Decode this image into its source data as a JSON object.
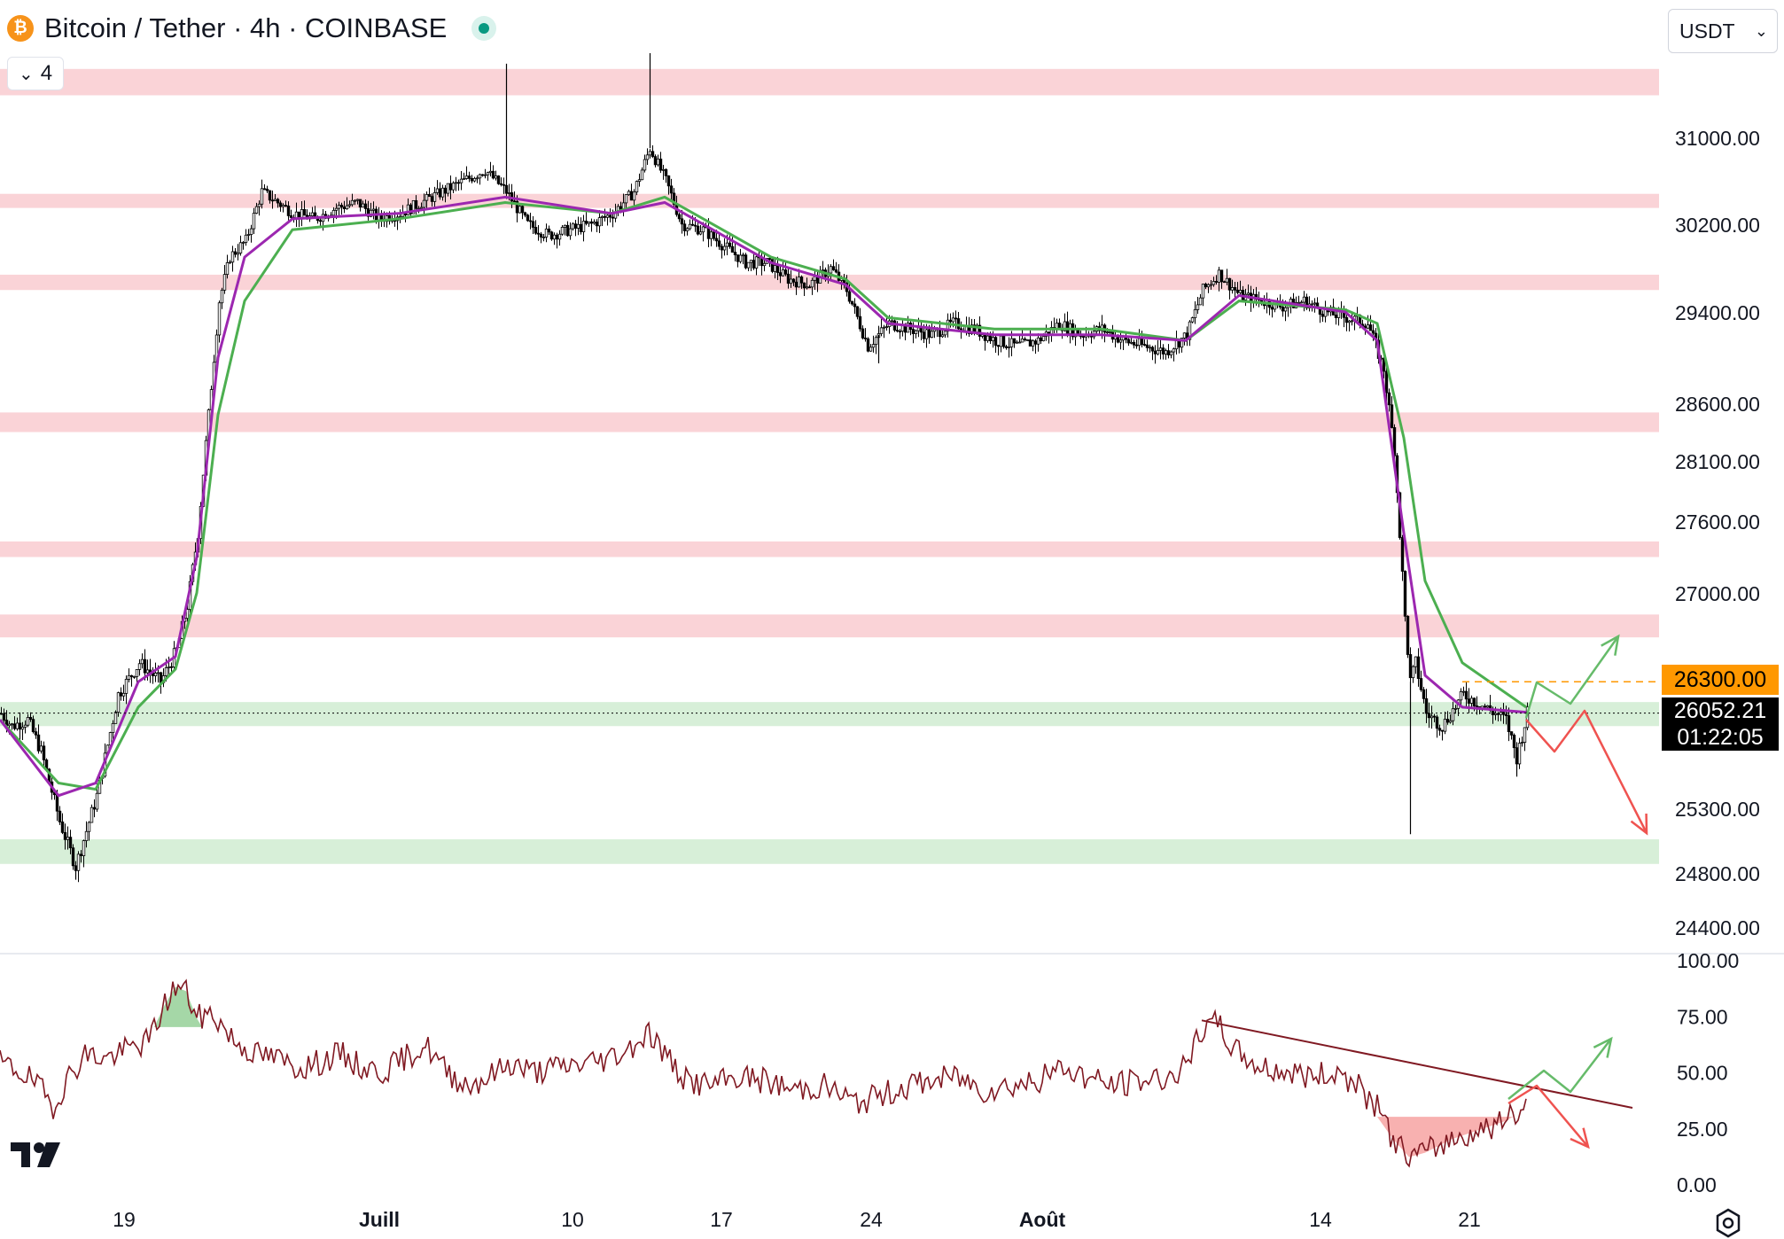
{
  "header": {
    "title": "Bitcoin / Tether · 4h · COINBASE",
    "collapse_count": "4",
    "currency": "USDT"
  },
  "badges": {
    "target_price": "26300.00",
    "last_price": "26052.21",
    "countdown": "01:22:05"
  },
  "colors": {
    "resistance_zone": "#fad3d7",
    "support_zone": "#d7efd8",
    "ema_fast": "#9c27b0",
    "ema_slow": "#4caf50",
    "rsi_line": "#801922",
    "trend_line": "#801922",
    "bull_arrow": "#66bb6a",
    "bear_arrow": "#ef5350",
    "target_line": "#ff9800"
  },
  "icons": [
    "bitcoin-icon",
    "tether-icon",
    "chevron-down-icon",
    "tradingview-logo-icon",
    "settings-icon"
  ],
  "chart_data": [
    {
      "type": "candlestick",
      "title": "Bitcoin / Tether · 4h · COINBASE",
      "ylim": [
        24300,
        32100
      ],
      "y_ticks": [
        31000,
        30200,
        29400,
        28600,
        28100,
        27600,
        27000,
        25300,
        24800,
        24400
      ],
      "y_tick_labels": [
        "31000.00",
        "30200.00",
        "29400.00",
        "28600.00",
        "28100.00",
        "27600.00",
        "27000.00",
        "25300.00",
        "24800.00",
        "24400.00"
      ],
      "x_tick_labels": [
        "19",
        "Juill",
        "10",
        "17",
        "24",
        "Août",
        "14",
        "21"
      ],
      "grid": false,
      "resistance_zones": [
        [
          31400,
          31650
        ],
        [
          30350,
          30480
        ],
        [
          29600,
          29740
        ],
        [
          28350,
          28520
        ],
        [
          27300,
          27430
        ],
        [
          26650,
          26830
        ]
      ],
      "support_zones": [
        [
          25950,
          26140
        ],
        [
          24870,
          25060
        ]
      ],
      "target_price": 26300,
      "last_price": 26052.21,
      "price_path": [
        [
          0,
          26050
        ],
        [
          4,
          25950
        ],
        [
          10,
          26000
        ],
        [
          15,
          25750
        ],
        [
          22,
          25200
        ],
        [
          28,
          24850
        ],
        [
          36,
          25400
        ],
        [
          44,
          26200
        ],
        [
          52,
          26450
        ],
        [
          60,
          26300
        ],
        [
          66,
          26550
        ],
        [
          70,
          26900
        ],
        [
          74,
          27500
        ],
        [
          78,
          28500
        ],
        [
          82,
          29500
        ],
        [
          86,
          29900
        ],
        [
          92,
          30050
        ],
        [
          98,
          30500
        ],
        [
          104,
          30400
        ],
        [
          110,
          30300
        ],
        [
          118,
          30250
        ],
        [
          126,
          30350
        ],
        [
          134,
          30400
        ],
        [
          142,
          30250
        ],
        [
          150,
          30300
        ],
        [
          158,
          30400
        ],
        [
          166,
          30500
        ],
        [
          174,
          30600
        ],
        [
          182,
          30700
        ],
        [
          190,
          30500
        ],
        [
          198,
          30200
        ],
        [
          206,
          30100
        ],
        [
          214,
          30150
        ],
        [
          222,
          30200
        ],
        [
          230,
          30300
        ],
        [
          238,
          30500
        ],
        [
          244,
          30900
        ],
        [
          250,
          30600
        ],
        [
          256,
          30200
        ],
        [
          264,
          30150
        ],
        [
          272,
          30000
        ],
        [
          280,
          29850
        ],
        [
          288,
          29850
        ],
        [
          296,
          29700
        ],
        [
          304,
          29650
        ],
        [
          312,
          29800
        ],
        [
          318,
          29600
        ],
        [
          326,
          29100
        ],
        [
          334,
          29300
        ],
        [
          342,
          29250
        ],
        [
          350,
          29200
        ],
        [
          358,
          29300
        ],
        [
          366,
          29250
        ],
        [
          374,
          29150
        ],
        [
          382,
          29100
        ],
        [
          390,
          29150
        ],
        [
          398,
          29300
        ],
        [
          406,
          29200
        ],
        [
          414,
          29250
        ],
        [
          422,
          29150
        ],
        [
          430,
          29100
        ],
        [
          438,
          29050
        ],
        [
          446,
          29200
        ],
        [
          452,
          29600
        ],
        [
          458,
          29750
        ],
        [
          466,
          29550
        ],
        [
          474,
          29500
        ],
        [
          482,
          29450
        ],
        [
          490,
          29500
        ],
        [
          498,
          29400
        ],
        [
          506,
          29350
        ],
        [
          514,
          29300
        ],
        [
          520,
          28900
        ],
        [
          524,
          28200
        ],
        [
          528,
          26800
        ],
        [
          530,
          26300
        ],
        [
          532,
          26450
        ],
        [
          536,
          26050
        ],
        [
          542,
          25950
        ],
        [
          550,
          26200
        ],
        [
          558,
          26100
        ],
        [
          566,
          26000
        ],
        [
          570,
          25700
        ],
        [
          574,
          26052
        ]
      ],
      "ema_fast_path": [
        [
          0,
          26000
        ],
        [
          22,
          25400
        ],
        [
          36,
          25500
        ],
        [
          52,
          26300
        ],
        [
          66,
          26500
        ],
        [
          74,
          27300
        ],
        [
          82,
          29000
        ],
        [
          92,
          29900
        ],
        [
          110,
          30250
        ],
        [
          150,
          30300
        ],
        [
          190,
          30450
        ],
        [
          230,
          30300
        ],
        [
          250,
          30400
        ],
        [
          290,
          29850
        ],
        [
          318,
          29650
        ],
        [
          334,
          29300
        ],
        [
          374,
          29200
        ],
        [
          414,
          29200
        ],
        [
          446,
          29150
        ],
        [
          466,
          29550
        ],
        [
          506,
          29400
        ],
        [
          518,
          29150
        ],
        [
          528,
          27500
        ],
        [
          536,
          26350
        ],
        [
          550,
          26100
        ],
        [
          574,
          26060
        ]
      ],
      "ema_slow_path": [
        [
          0,
          26000
        ],
        [
          22,
          25500
        ],
        [
          36,
          25450
        ],
        [
          52,
          26100
        ],
        [
          66,
          26400
        ],
        [
          74,
          27000
        ],
        [
          82,
          28500
        ],
        [
          92,
          29500
        ],
        [
          110,
          30150
        ],
        [
          150,
          30250
        ],
        [
          190,
          30400
        ],
        [
          230,
          30300
        ],
        [
          250,
          30450
        ],
        [
          290,
          29900
        ],
        [
          318,
          29700
        ],
        [
          334,
          29350
        ],
        [
          374,
          29250
        ],
        [
          414,
          29250
        ],
        [
          446,
          29150
        ],
        [
          466,
          29500
        ],
        [
          506,
          29420
        ],
        [
          518,
          29300
        ],
        [
          528,
          28300
        ],
        [
          536,
          27100
        ],
        [
          550,
          26450
        ],
        [
          574,
          26100
        ]
      ],
      "series": [
        {
          "name": "",
          "kind": "EMA fast"
        },
        {
          "name": "",
          "kind": "EMA slow"
        }
      ]
    },
    {
      "type": "line",
      "title": "",
      "ylim": [
        0,
        100
      ],
      "y_ticks": [
        100,
        75,
        50,
        25,
        0
      ],
      "y_tick_labels": [
        "100.00",
        "75.00",
        "50.00",
        "25.00",
        "0.00"
      ],
      "rsi_path": [
        [
          0,
          54
        ],
        [
          8,
          50
        ],
        [
          14,
          44
        ],
        [
          20,
          35
        ],
        [
          26,
          48
        ],
        [
          32,
          58
        ],
        [
          40,
          56
        ],
        [
          48,
          60
        ],
        [
          56,
          64
        ],
        [
          62,
          80
        ],
        [
          66,
          88
        ],
        [
          70,
          86
        ],
        [
          74,
          74
        ],
        [
          80,
          76
        ],
        [
          88,
          64
        ],
        [
          96,
          58
        ],
        [
          104,
          56
        ],
        [
          112,
          52
        ],
        [
          120,
          54
        ],
        [
          128,
          58
        ],
        [
          136,
          52
        ],
        [
          144,
          50
        ],
        [
          152,
          56
        ],
        [
          160,
          62
        ],
        [
          168,
          50
        ],
        [
          176,
          44
        ],
        [
          184,
          48
        ],
        [
          192,
          54
        ],
        [
          200,
          50
        ],
        [
          210,
          52
        ],
        [
          220,
          54
        ],
        [
          228,
          56
        ],
        [
          236,
          60
        ],
        [
          244,
          68
        ],
        [
          250,
          58
        ],
        [
          258,
          46
        ],
        [
          268,
          44
        ],
        [
          278,
          48
        ],
        [
          288,
          46
        ],
        [
          298,
          42
        ],
        [
          310,
          44
        ],
        [
          322,
          36
        ],
        [
          332,
          40
        ],
        [
          342,
          44
        ],
        [
          350,
          46
        ],
        [
          360,
          48
        ],
        [
          370,
          42
        ],
        [
          380,
          44
        ],
        [
          390,
          46
        ],
        [
          400,
          52
        ],
        [
          408,
          48
        ],
        [
          418,
          44
        ],
        [
          428,
          46
        ],
        [
          440,
          48
        ],
        [
          446,
          52
        ],
        [
          452,
          68
        ],
        [
          458,
          72
        ],
        [
          464,
          60
        ],
        [
          474,
          52
        ],
        [
          484,
          50
        ],
        [
          494,
          48
        ],
        [
          504,
          50
        ],
        [
          512,
          42
        ],
        [
          518,
          34
        ],
        [
          524,
          20
        ],
        [
          530,
          12
        ],
        [
          536,
          14
        ],
        [
          546,
          20
        ],
        [
          556,
          24
        ],
        [
          566,
          28
        ],
        [
          572,
          32
        ],
        [
          574,
          38
        ]
      ],
      "trend_line": [
        [
          452,
          73
        ],
        [
          614,
          34
        ]
      ]
    }
  ]
}
